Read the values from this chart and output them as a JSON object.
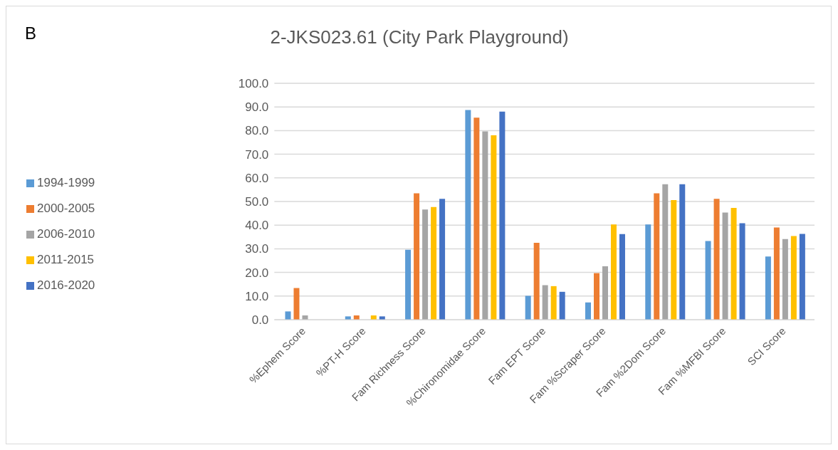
{
  "chart_data": {
    "type": "bar",
    "title": "2-JKS023.61 (City Park Playground)",
    "annotations": [
      "B"
    ],
    "categories": [
      "%Ephem Score",
      "%PT-H Score",
      "Fam Richness Score",
      "%Chironomidae Score",
      "Fam EPT Score",
      "Fam %Scraper Score",
      "Fam %2Dom Score",
      "Fam %MFBI Score",
      "SCI Score"
    ],
    "series": [
      {
        "name": "1994-1999",
        "color": "#5b9bd5",
        "values": [
          3.5,
          1.4,
          29.6,
          88.7,
          10.1,
          7.3,
          40.3,
          33.3,
          26.7
        ]
      },
      {
        "name": "2000-2005",
        "color": "#ed7d31",
        "values": [
          13.4,
          1.8,
          53.5,
          85.5,
          32.5,
          19.7,
          53.5,
          51.1,
          39.0
        ]
      },
      {
        "name": "2006-2010",
        "color": "#a5a5a5",
        "values": [
          1.8,
          0,
          46.6,
          79.7,
          14.6,
          22.6,
          57.3,
          45.3,
          34.1
        ]
      },
      {
        "name": "2011-2015",
        "color": "#ffc000",
        "values": [
          0,
          1.8,
          47.7,
          78.0,
          14.2,
          40.3,
          50.6,
          47.3,
          35.4
        ]
      },
      {
        "name": "2016-2020",
        "color": "#4472c4",
        "values": [
          0,
          1.4,
          51.1,
          88.0,
          11.8,
          36.2,
          57.3,
          40.8,
          36.3
        ]
      }
    ],
    "ylim": [
      0,
      100
    ],
    "yticks": [
      {
        "value": 0,
        "label": "0.0"
      },
      {
        "value": 10,
        "label": "10.0"
      },
      {
        "value": 20,
        "label": "20.0"
      },
      {
        "value": 30,
        "label": "30.0"
      },
      {
        "value": 40,
        "label": "40.0"
      },
      {
        "value": 50,
        "label": "50.0"
      },
      {
        "value": 60,
        "label": "60.0"
      },
      {
        "value": 70,
        "label": "70.0"
      },
      {
        "value": 80,
        "label": "80.0"
      },
      {
        "value": 90,
        "label": "90.0"
      },
      {
        "value": 100,
        "label": "100.0"
      }
    ],
    "grid": "y",
    "legend": "left"
  }
}
